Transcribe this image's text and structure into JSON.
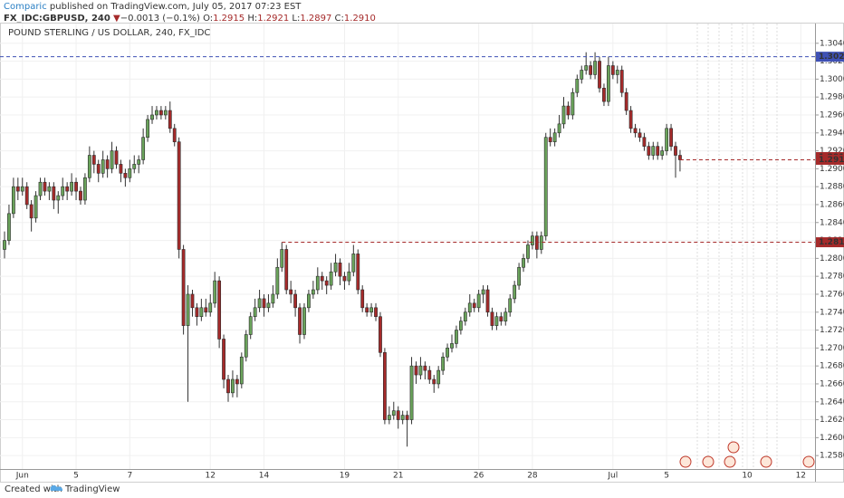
{
  "header": {
    "author": "Comparic",
    "published": "published on TradingView.com, July 05, 2017 07:23 EST",
    "symbol": "FX_IDC:GBPUSD, 240",
    "direction": "▼",
    "change": "−0.0013 (−0.1%)",
    "ohlc": [
      {
        "key": "O:",
        "value": "1.2915"
      },
      {
        "key": "H:",
        "value": "1.2921"
      },
      {
        "key": "L:",
        "value": "1.2897"
      },
      {
        "key": "C:",
        "value": "1.2910"
      }
    ]
  },
  "footer": {
    "created": "Created with",
    "brand": "TradingView"
  },
  "chart_data": {
    "type": "candlestick",
    "title": "POUND STERLING / US DOLLAR, 240, FX_IDC",
    "up_color": "#6aa35b",
    "down_color": "#a52a2a",
    "grid": true,
    "ylim": [
      1.2565,
      1.3062
    ],
    "yticks": [
      {
        "value": 1.258,
        "label": "1.2580"
      },
      {
        "value": 1.26,
        "label": "1.2600"
      },
      {
        "value": 1.262,
        "label": "1.2620"
      },
      {
        "value": 1.264,
        "label": "1.2640"
      },
      {
        "value": 1.266,
        "label": "1.2660"
      },
      {
        "value": 1.268,
        "label": "1.2680"
      },
      {
        "value": 1.27,
        "label": "1.2700"
      },
      {
        "value": 1.272,
        "label": "1.2720"
      },
      {
        "value": 1.274,
        "label": "1.2740"
      },
      {
        "value": 1.276,
        "label": "1.2760"
      },
      {
        "value": 1.278,
        "label": "1.2780"
      },
      {
        "value": 1.28,
        "label": "1.2800"
      },
      {
        "value": 1.282,
        "label": "1.2820"
      },
      {
        "value": 1.284,
        "label": "1.2840"
      },
      {
        "value": 1.286,
        "label": "1.2860"
      },
      {
        "value": 1.288,
        "label": "1.2880"
      },
      {
        "value": 1.29,
        "label": "1.2900"
      },
      {
        "value": 1.292,
        "label": "1.2920"
      },
      {
        "value": 1.294,
        "label": "1.2940"
      },
      {
        "value": 1.296,
        "label": "1.2960"
      },
      {
        "value": 1.298,
        "label": "1.2980"
      },
      {
        "value": 1.3,
        "label": "1.3000"
      },
      {
        "value": 1.302,
        "label": "1.3020"
      },
      {
        "value": 1.304,
        "label": "1.3040"
      }
    ],
    "levels": [
      {
        "value": 1.3025,
        "color": "#3f51b5"
      },
      {
        "value": 1.2913,
        "color": "#a52a2a"
      },
      {
        "value": 1.291,
        "label": "1.2910",
        "color": "#a52a2a"
      },
      {
        "value": 1.2818,
        "color": "#a52a2a"
      }
    ],
    "categories": [
      null,
      null,
      null,
      null,
      "Jun",
      null,
      null,
      null,
      null,
      null,
      null,
      null,
      null,
      null,
      null,
      null,
      "5",
      null,
      null,
      null,
      null,
      null,
      null,
      null,
      null,
      null,
      null,
      null,
      "7",
      null,
      null,
      null,
      null,
      null,
      null,
      null,
      null,
      null,
      null,
      null,
      null,
      null,
      null,
      null,
      null,
      null,
      "12",
      null,
      null,
      null,
      null,
      null,
      null,
      null,
      null,
      null,
      null,
      null,
      "14",
      null,
      null,
      null,
      null,
      null,
      null,
      null,
      null,
      null,
      null,
      null,
      null,
      null,
      null,
      null,
      null,
      null,
      "19",
      null,
      null,
      null,
      null,
      null,
      null,
      null,
      null,
      null,
      null,
      null,
      "21",
      null,
      null,
      null,
      null,
      null,
      null,
      null,
      null,
      null,
      null,
      null,
      null,
      null,
      null,
      null,
      null,
      null,
      "26",
      null,
      null,
      null,
      null,
      null,
      null,
      null,
      null,
      null,
      null,
      null,
      "28",
      null,
      null,
      null,
      null,
      null,
      null,
      null,
      null,
      null,
      null,
      null,
      null,
      null,
      null,
      null,
      null,
      null,
      "Jul",
      null,
      null,
      null,
      null,
      null,
      null,
      null,
      null,
      null,
      null,
      null,
      "5",
      null,
      null,
      null,
      null,
      null,
      null,
      null,
      null,
      null,
      null,
      null,
      null,
      null,
      null,
      null,
      null,
      null,
      "10",
      null,
      null,
      null,
      null,
      null,
      null,
      null,
      null,
      null,
      null,
      null,
      "12"
    ],
    "candles": [
      [
        1.281,
        1.283,
        1.28,
        1.282
      ],
      [
        1.282,
        1.286,
        1.2815,
        1.285
      ],
      [
        1.285,
        1.289,
        1.2845,
        1.288
      ],
      [
        1.288,
        1.289,
        1.2865,
        1.2875
      ],
      [
        1.2875,
        1.289,
        1.287,
        1.288
      ],
      [
        1.288,
        1.2885,
        1.2855,
        1.286
      ],
      [
        1.286,
        1.2865,
        1.283,
        1.2845
      ],
      [
        1.2845,
        1.2875,
        1.284,
        1.287
      ],
      [
        1.287,
        1.289,
        1.2865,
        1.2885
      ],
      [
        1.2885,
        1.289,
        1.287,
        1.2875
      ],
      [
        1.2875,
        1.2885,
        1.2865,
        1.288
      ],
      [
        1.288,
        1.2885,
        1.2855,
        1.2865
      ],
      [
        1.2865,
        1.2875,
        1.285,
        1.287
      ],
      [
        1.287,
        1.289,
        1.2865,
        1.288
      ],
      [
        1.288,
        1.2885,
        1.2865,
        1.2875
      ],
      [
        1.2875,
        1.2895,
        1.287,
        1.2885
      ],
      [
        1.2885,
        1.289,
        1.2865,
        1.2875
      ],
      [
        1.2875,
        1.288,
        1.286,
        1.2865
      ],
      [
        1.2865,
        1.2895,
        1.286,
        1.289
      ],
      [
        1.289,
        1.2925,
        1.2885,
        1.2915
      ],
      [
        1.2915,
        1.292,
        1.2895,
        1.2905
      ],
      [
        1.2905,
        1.291,
        1.2885,
        1.2895
      ],
      [
        1.2895,
        1.292,
        1.289,
        1.291
      ],
      [
        1.291,
        1.2915,
        1.289,
        1.29
      ],
      [
        1.29,
        1.293,
        1.2895,
        1.292
      ],
      [
        1.292,
        1.2925,
        1.29,
        1.2905
      ],
      [
        1.2905,
        1.291,
        1.2885,
        1.2895
      ],
      [
        1.2895,
        1.29,
        1.288,
        1.289
      ],
      [
        1.289,
        1.291,
        1.2885,
        1.29
      ],
      [
        1.29,
        1.2915,
        1.2895,
        1.2905
      ],
      [
        1.2905,
        1.2915,
        1.2895,
        1.291
      ],
      [
        1.291,
        1.2945,
        1.2905,
        1.2935
      ],
      [
        1.2935,
        1.296,
        1.293,
        1.2955
      ],
      [
        1.2955,
        1.297,
        1.295,
        1.296
      ],
      [
        1.296,
        1.297,
        1.2955,
        1.2965
      ],
      [
        1.2965,
        1.297,
        1.2955,
        1.296
      ],
      [
        1.296,
        1.297,
        1.2955,
        1.2965
      ],
      [
        1.2965,
        1.2975,
        1.294,
        1.2945
      ],
      [
        1.2945,
        1.295,
        1.2925,
        1.293
      ],
      [
        1.293,
        1.2935,
        1.28,
        1.281
      ],
      [
        1.281,
        1.2815,
        1.2715,
        1.2725
      ],
      [
        1.2725,
        1.277,
        1.264,
        1.276
      ],
      [
        1.276,
        1.2765,
        1.2735,
        1.2745
      ],
      [
        1.2745,
        1.275,
        1.2725,
        1.2735
      ],
      [
        1.2735,
        1.2755,
        1.273,
        1.2745
      ],
      [
        1.2745,
        1.2755,
        1.2735,
        1.274
      ],
      [
        1.274,
        1.276,
        1.2735,
        1.275
      ],
      [
        1.275,
        1.2785,
        1.2745,
        1.2775
      ],
      [
        1.2775,
        1.278,
        1.27,
        1.271
      ],
      [
        1.271,
        1.2715,
        1.2655,
        1.2665
      ],
      [
        1.2665,
        1.267,
        1.264,
        1.265
      ],
      [
        1.265,
        1.2675,
        1.2645,
        1.2665
      ],
      [
        1.2665,
        1.267,
        1.2645,
        1.266
      ],
      [
        1.266,
        1.2695,
        1.2655,
        1.269
      ],
      [
        1.269,
        1.272,
        1.2685,
        1.2715
      ],
      [
        1.2715,
        1.274,
        1.271,
        1.2735
      ],
      [
        1.2735,
        1.2755,
        1.273,
        1.2745
      ],
      [
        1.2745,
        1.2765,
        1.274,
        1.2755
      ],
      [
        1.2755,
        1.276,
        1.2735,
        1.2745
      ],
      [
        1.2745,
        1.276,
        1.274,
        1.275
      ],
      [
        1.275,
        1.277,
        1.2745,
        1.276
      ],
      [
        1.276,
        1.28,
        1.2755,
        1.279
      ],
      [
        1.279,
        1.2818,
        1.2785,
        1.281
      ],
      [
        1.281,
        1.2815,
        1.276,
        1.2765
      ],
      [
        1.2765,
        1.2775,
        1.275,
        1.276
      ],
      [
        1.276,
        1.2765,
        1.2735,
        1.2745
      ],
      [
        1.2745,
        1.275,
        1.2705,
        1.2715
      ],
      [
        1.2715,
        1.275,
        1.271,
        1.2745
      ],
      [
        1.2745,
        1.2765,
        1.274,
        1.276
      ],
      [
        1.276,
        1.2775,
        1.2755,
        1.2765
      ],
      [
        1.2765,
        1.279,
        1.276,
        1.278
      ],
      [
        1.278,
        1.2785,
        1.2765,
        1.2775
      ],
      [
        1.2775,
        1.278,
        1.276,
        1.277
      ],
      [
        1.277,
        1.2795,
        1.2765,
        1.2785
      ],
      [
        1.2785,
        1.2805,
        1.278,
        1.2795
      ],
      [
        1.2795,
        1.28,
        1.277,
        1.278
      ],
      [
        1.278,
        1.2785,
        1.2765,
        1.2775
      ],
      [
        1.2775,
        1.2795,
        1.277,
        1.2785
      ],
      [
        1.2785,
        1.2815,
        1.278,
        1.2805
      ],
      [
        1.2805,
        1.281,
        1.276,
        1.2765
      ],
      [
        1.2765,
        1.277,
        1.274,
        1.2745
      ],
      [
        1.2745,
        1.275,
        1.2735,
        1.274
      ],
      [
        1.274,
        1.275,
        1.2735,
        1.2745
      ],
      [
        1.2745,
        1.275,
        1.273,
        1.2735
      ],
      [
        1.2735,
        1.274,
        1.269,
        1.2695
      ],
      [
        1.2695,
        1.27,
        1.2615,
        1.262
      ],
      [
        1.262,
        1.2635,
        1.2615,
        1.2625
      ],
      [
        1.2625,
        1.264,
        1.262,
        1.263
      ],
      [
        1.263,
        1.2635,
        1.261,
        1.262
      ],
      [
        1.262,
        1.263,
        1.2615,
        1.2625
      ],
      [
        1.2625,
        1.263,
        1.259,
        1.262
      ],
      [
        1.262,
        1.269,
        1.2615,
        1.268
      ],
      [
        1.268,
        1.2685,
        1.266,
        1.267
      ],
      [
        1.267,
        1.269,
        1.2665,
        1.268
      ],
      [
        1.268,
        1.2685,
        1.2665,
        1.2675
      ],
      [
        1.2675,
        1.268,
        1.266,
        1.2665
      ],
      [
        1.2665,
        1.267,
        1.265,
        1.266
      ],
      [
        1.266,
        1.268,
        1.2655,
        1.2675
      ],
      [
        1.2675,
        1.2695,
        1.267,
        1.269
      ],
      [
        1.269,
        1.2705,
        1.2685,
        1.27
      ],
      [
        1.27,
        1.2715,
        1.2695,
        1.2705
      ],
      [
        1.2705,
        1.2725,
        1.27,
        1.272
      ],
      [
        1.272,
        1.2735,
        1.2715,
        1.273
      ],
      [
        1.273,
        1.2745,
        1.2725,
        1.274
      ],
      [
        1.274,
        1.276,
        1.2735,
        1.275
      ],
      [
        1.275,
        1.2755,
        1.274,
        1.2745
      ],
      [
        1.2745,
        1.2765,
        1.274,
        1.276
      ],
      [
        1.276,
        1.277,
        1.275,
        1.2765
      ],
      [
        1.2765,
        1.277,
        1.2735,
        1.274
      ],
      [
        1.274,
        1.2745,
        1.272,
        1.2725
      ],
      [
        1.2725,
        1.274,
        1.272,
        1.2735
      ],
      [
        1.2735,
        1.274,
        1.2725,
        1.273
      ],
      [
        1.273,
        1.2745,
        1.2725,
        1.274
      ],
      [
        1.274,
        1.276,
        1.2735,
        1.2755
      ],
      [
        1.2755,
        1.2775,
        1.275,
        1.277
      ],
      [
        1.277,
        1.2795,
        1.2765,
        1.279
      ],
      [
        1.279,
        1.2805,
        1.2785,
        1.28
      ],
      [
        1.28,
        1.282,
        1.2795,
        1.2815
      ],
      [
        1.2815,
        1.283,
        1.281,
        1.2825
      ],
      [
        1.2825,
        1.283,
        1.28,
        1.281
      ],
      [
        1.281,
        1.283,
        1.2805,
        1.2825
      ],
      [
        1.2825,
        1.294,
        1.282,
        1.2935
      ],
      [
        1.2935,
        1.2945,
        1.2925,
        1.293
      ],
      [
        1.293,
        1.2945,
        1.2925,
        1.294
      ],
      [
        1.294,
        1.296,
        1.2935,
        1.295
      ],
      [
        1.295,
        1.298,
        1.2945,
        1.297
      ],
      [
        1.297,
        1.2975,
        1.2955,
        1.296
      ],
      [
        1.296,
        1.299,
        1.2955,
        1.2985
      ],
      [
        1.2985,
        1.3005,
        1.298,
        1.3
      ],
      [
        1.3,
        1.3015,
        1.2995,
        1.301
      ],
      [
        1.301,
        1.303,
        1.3005,
        1.3015
      ],
      [
        1.3015,
        1.302,
        1.3,
        1.3005
      ],
      [
        1.3005,
        1.303,
        1.3,
        1.302
      ],
      [
        1.302,
        1.3025,
        1.2985,
        1.299
      ],
      [
        1.299,
        1.2995,
        1.297,
        1.2975
      ],
      [
        1.2975,
        1.3025,
        1.297,
        1.3015
      ],
      [
        1.3015,
        1.302,
        1.3,
        1.3005
      ],
      [
        1.3005,
        1.3015,
        1.2995,
        1.301
      ],
      [
        1.301,
        1.3015,
        1.298,
        1.2985
      ],
      [
        1.2985,
        1.299,
        1.296,
        1.2965
      ],
      [
        1.2965,
        1.297,
        1.294,
        1.2945
      ],
      [
        1.2945,
        1.295,
        1.2935,
        1.294
      ],
      [
        1.294,
        1.2945,
        1.293,
        1.2935
      ],
      [
        1.2935,
        1.294,
        1.292,
        1.2925
      ],
      [
        1.2925,
        1.293,
        1.291,
        1.2915
      ],
      [
        1.2915,
        1.293,
        1.291,
        1.2925
      ],
      [
        1.2925,
        1.293,
        1.291,
        1.2915
      ],
      [
        1.2915,
        1.2925,
        1.291,
        1.292
      ],
      [
        1.292,
        1.295,
        1.2915,
        1.2945
      ],
      [
        1.2945,
        1.295,
        1.292,
        1.2925
      ],
      [
        1.2925,
        1.293,
        1.289,
        1.2915
      ],
      [
        1.2915,
        1.2921,
        1.2897,
        1.291
      ],
      null,
      null,
      null,
      null,
      null,
      null,
      null,
      null,
      null,
      null,
      null,
      null,
      null,
      null,
      null,
      null,
      null,
      null,
      null,
      null,
      null,
      null,
      null,
      null,
      null,
      null,
      null
    ]
  }
}
